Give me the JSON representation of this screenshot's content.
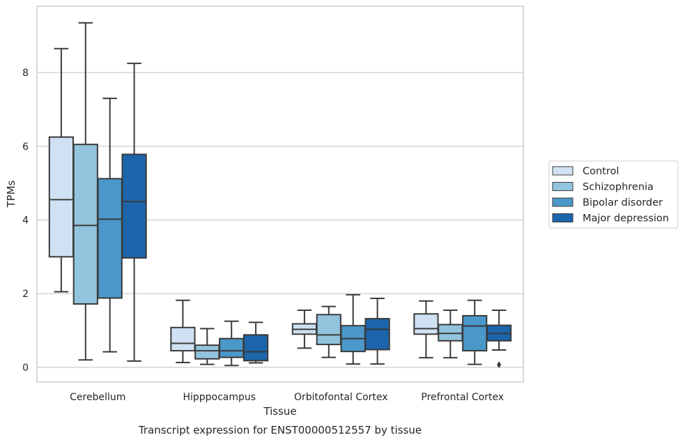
{
  "chart_data": {
    "type": "boxplot",
    "title": "",
    "caption": "Transcript expression for ENST00000512557 by tissue",
    "xlabel": "Tissue",
    "ylabel": "TPMs",
    "ylim": [
      -0.4,
      9.8
    ],
    "yticks": [
      "0",
      "2",
      "4",
      "6",
      "8"
    ],
    "grid": "horizontal",
    "legend_position": "right",
    "categories": [
      "Cerebellum",
      "Hipppocampus",
      "Orbitofontal Cortex",
      "Prefrontal Cortex"
    ],
    "series": [
      {
        "name": "Control",
        "color": "#cfe1f2",
        "boxes": [
          {
            "whislo": 2.05,
            "q1": 3.0,
            "med": 4.55,
            "q3": 6.25,
            "whishi": 8.65,
            "fliers": []
          },
          {
            "whislo": 0.13,
            "q1": 0.45,
            "med": 0.65,
            "q3": 1.08,
            "whishi": 1.82,
            "fliers": []
          },
          {
            "whislo": 0.52,
            "q1": 0.9,
            "med": 1.03,
            "q3": 1.18,
            "whishi": 1.55,
            "fliers": []
          },
          {
            "whislo": 0.26,
            "q1": 0.9,
            "med": 1.05,
            "q3": 1.45,
            "whishi": 1.8,
            "fliers": []
          }
        ]
      },
      {
        "name": "Schizophrenia",
        "color": "#93c4de",
        "boxes": [
          {
            "whislo": 0.2,
            "q1": 1.72,
            "med": 3.85,
            "q3": 6.05,
            "whishi": 9.35,
            "fliers": []
          },
          {
            "whislo": 0.08,
            "q1": 0.23,
            "med": 0.45,
            "q3": 0.6,
            "whishi": 1.05,
            "fliers": []
          },
          {
            "whislo": 0.27,
            "q1": 0.62,
            "med": 0.88,
            "q3": 1.43,
            "whishi": 1.65,
            "fliers": []
          },
          {
            "whislo": 0.26,
            "q1": 0.72,
            "med": 0.92,
            "q3": 1.16,
            "whishi": 1.55,
            "fliers": []
          }
        ]
      },
      {
        "name": "Bipolar disorder",
        "color": "#4a98c9",
        "boxes": [
          {
            "whislo": 0.42,
            "q1": 1.88,
            "med": 4.02,
            "q3": 5.12,
            "whishi": 7.3,
            "fliers": []
          },
          {
            "whislo": 0.05,
            "q1": 0.27,
            "med": 0.45,
            "q3": 0.78,
            "whishi": 1.25,
            "fliers": []
          },
          {
            "whislo": 0.09,
            "q1": 0.43,
            "med": 0.78,
            "q3": 1.13,
            "whishi": 1.97,
            "fliers": []
          },
          {
            "whislo": 0.08,
            "q1": 0.45,
            "med": 1.12,
            "q3": 1.4,
            "whishi": 1.82,
            "fliers": []
          }
        ]
      },
      {
        "name": "Major depression",
        "color": "#1c65ab",
        "boxes": [
          {
            "whislo": 0.17,
            "q1": 2.97,
            "med": 4.5,
            "q3": 5.78,
            "whishi": 8.25,
            "fliers": []
          },
          {
            "whislo": 0.12,
            "q1": 0.18,
            "med": 0.42,
            "q3": 0.88,
            "whishi": 1.22,
            "fliers": []
          },
          {
            "whislo": 0.09,
            "q1": 0.48,
            "med": 1.03,
            "q3": 1.32,
            "whishi": 1.87,
            "fliers": []
          },
          {
            "whislo": 0.47,
            "q1": 0.72,
            "med": 0.92,
            "q3": 1.14,
            "whishi": 1.55,
            "fliers": [
              0.07
            ]
          }
        ]
      }
    ]
  }
}
